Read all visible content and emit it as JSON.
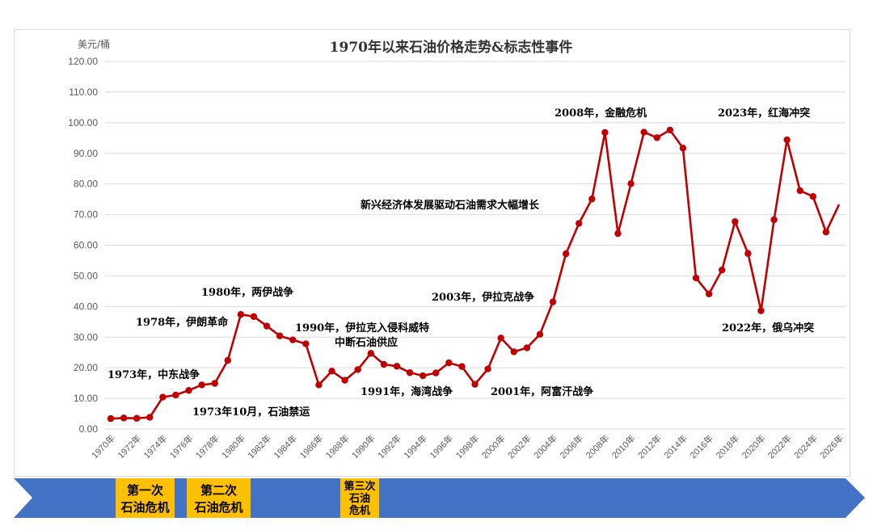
{
  "chart_data": {
    "type": "line",
    "title": "1970年以来石油价格走势&标志性事件",
    "ylabel": "美元/桶",
    "ylim": [
      0,
      120
    ],
    "yticks": [
      "0.00",
      "10.00",
      "20.00",
      "30.00",
      "40.00",
      "50.00",
      "60.00",
      "70.00",
      "80.00",
      "90.00",
      "100.00",
      "110.00",
      "120.00"
    ],
    "xticks": [
      "1970年",
      "1972年",
      "1974年",
      "1976年",
      "1978年",
      "1980年",
      "1982年",
      "1984年",
      "1986年",
      "1988年",
      "1990年",
      "1992年",
      "1994年",
      "1996年",
      "1998年",
      "2000年",
      "2002年",
      "2004年",
      "2006年",
      "2008年",
      "2010年",
      "2012年",
      "2014年",
      "2016年",
      "2018年",
      "2020年",
      "2022年",
      "2024年",
      "2026年"
    ],
    "grid": true,
    "series": [
      {
        "color": "#c00000",
        "x": [
          1970,
          1971,
          1972,
          1973,
          1974,
          1975,
          1976,
          1977,
          1978,
          1979,
          1980,
          1981,
          1982,
          1983,
          1984,
          1985,
          1986,
          1987,
          1988,
          1989,
          1990,
          1991,
          1992,
          1993,
          1994,
          1995,
          1996,
          1997,
          1998,
          1999,
          2000,
          2001,
          2002,
          2003,
          2004,
          2005,
          2006,
          2007,
          2008,
          2009,
          2010,
          2011,
          2012,
          2013,
          2014,
          2015,
          2016,
          2017,
          2018,
          2019,
          2020,
          2021,
          2022,
          2023,
          2024,
          2025,
          2026
        ],
        "values": [
          3.4,
          3.6,
          3.5,
          3.8,
          10.4,
          11.1,
          12.6,
          14.4,
          14.9,
          22.4,
          37.4,
          36.7,
          33.6,
          30.4,
          29.1,
          27.8,
          14.4,
          18.9,
          15.9,
          19.4,
          24.7,
          21.1,
          20.5,
          18.4,
          17.4,
          18.3,
          21.6,
          20.4,
          14.6,
          19.6,
          29.7,
          25.2,
          26.5,
          30.9,
          41.5,
          57.2,
          67.1,
          75.1,
          96.8,
          63.8,
          80.1,
          96.9,
          95.1,
          97.6,
          91.7,
          49.3,
          44.1,
          51.9,
          67.7,
          57.3,
          38.6,
          68.3,
          94.4,
          77.8,
          75.9,
          64.3,
          73.3
        ]
      }
    ],
    "annotations": [
      {
        "text": "1973年，中东战争",
        "year": 1973
      },
      {
        "text": "1973年10月，石油禁运",
        "year": 1973
      },
      {
        "text": "1978年，伊朗革命",
        "year": 1978
      },
      {
        "text": "1980年，两伊战争",
        "year": 1980
      },
      {
        "text": "1990年，伊拉克入侵科威特",
        "year": 1990
      },
      {
        "text": "中断石油供应",
        "year": 1990
      },
      {
        "text": "1991年，海湾战争",
        "year": 1991
      },
      {
        "text": "2001年，阿富汗战争",
        "year": 2001
      },
      {
        "text": "2003年，伊拉克战争",
        "year": 2003
      },
      {
        "text": "新兴经济体发展驱动石油需求大幅增长",
        "year": 2006
      },
      {
        "text": "2008年，金融危机",
        "year": 2008
      },
      {
        "text": "2023年，红海冲突",
        "year": 2023
      },
      {
        "text": "2022年，俄乌冲突",
        "year": 2022
      }
    ],
    "crises": [
      {
        "line1": "第一次",
        "line2": "石油危机",
        "line3": ""
      },
      {
        "line1": "第二次",
        "line2": "石油危机",
        "line3": ""
      },
      {
        "line1": "第三次",
        "line2": "石油",
        "line3": "危机"
      }
    ],
    "colors": {
      "line": "#c00000",
      "timeline": "#4472c4",
      "crisis_box": "#ffc000",
      "grid": "#d9d9d9"
    }
  }
}
